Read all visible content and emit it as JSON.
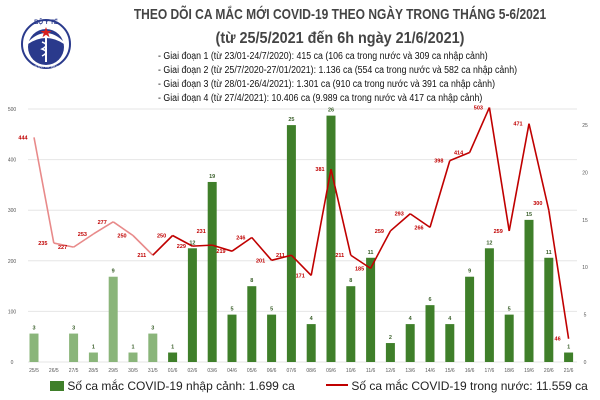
{
  "header": {
    "logo_text": "BỘ Y TẾ",
    "logo_subtext": "MINISTRY OF HEALTH",
    "title": "THEO DÕI CA MẮC MỚI COVID-19 THEO NGÀY TRONG THÁNG 5-6/2021",
    "subtitle": "(từ 25/5/2021 đến 6h ngày 21/6/2021)",
    "notes": [
      "- Giai đoạn 1 (từ 23/01-24/7/2020): 415 ca (106 ca trong nước và 309 ca nhập cảnh)",
      "- Giai đoạn 2 (từ 25/7/2020-27/01/2021): 1.136 ca (554 ca trong nước và 582 ca nhập cảnh)",
      "- Giai đoạn 3 (từ 28/01-26/4/2021): 1.301 ca (910 ca trong nước và 391 ca nhập cảnh)",
      "- Giai đoạn 4 (từ 27/4/2021): 10.406 ca (9.989 ca trong nước và 417 ca nhập cảnh)"
    ]
  },
  "chart_data": {
    "type": "bar+line",
    "categories": [
      "25/5",
      "26/5",
      "27/5",
      "28/5",
      "29/5",
      "30/5",
      "31/5",
      "01/6",
      "02/6",
      "03/6",
      "04/6",
      "05/6",
      "06/6",
      "07/6",
      "08/6",
      "09/6",
      "10/6",
      "11/6",
      "12/6",
      "13/6",
      "14/6",
      "15/6",
      "16/6",
      "17/6",
      "18/6",
      "19/6",
      "20/6",
      "21/6"
    ],
    "series": [
      {
        "name": "Số ca mắc COVID-19 nhập cảnh: 1.699 ca",
        "type": "bar",
        "axis": "right",
        "color": "#3f7f2a",
        "faded_color": "#8ab57a",
        "values": [
          3,
          0,
          3,
          1,
          9,
          1,
          3,
          1,
          12,
          19,
          5,
          8,
          5,
          25,
          4,
          26,
          8,
          11,
          2,
          4,
          6,
          4,
          9,
          12,
          5,
          15,
          11,
          1
        ]
      },
      {
        "name": "Số ca mắc COVID-19 trong nước: 11.559 ca",
        "type": "line",
        "axis": "left",
        "color": "#c00000",
        "faded_color": "#e88a8a",
        "values": [
          444,
          235,
          227,
          253,
          277,
          250,
          211,
          250,
          229,
          231,
          219,
          246,
          201,
          211,
          171,
          381,
          211,
          185,
          259,
          293,
          266,
          398,
          414,
          503,
          259,
          471,
          300,
          46
        ]
      }
    ],
    "faded_days": 7,
    "y_left": {
      "lim": [
        0,
        500
      ],
      "ticks": [
        0,
        100,
        200,
        300,
        400,
        500
      ]
    },
    "y_right": {
      "lim": [
        0,
        26.7
      ],
      "ticks": [
        0,
        5,
        10,
        15,
        20,
        25
      ]
    },
    "grid": true,
    "legend": "bottom"
  }
}
